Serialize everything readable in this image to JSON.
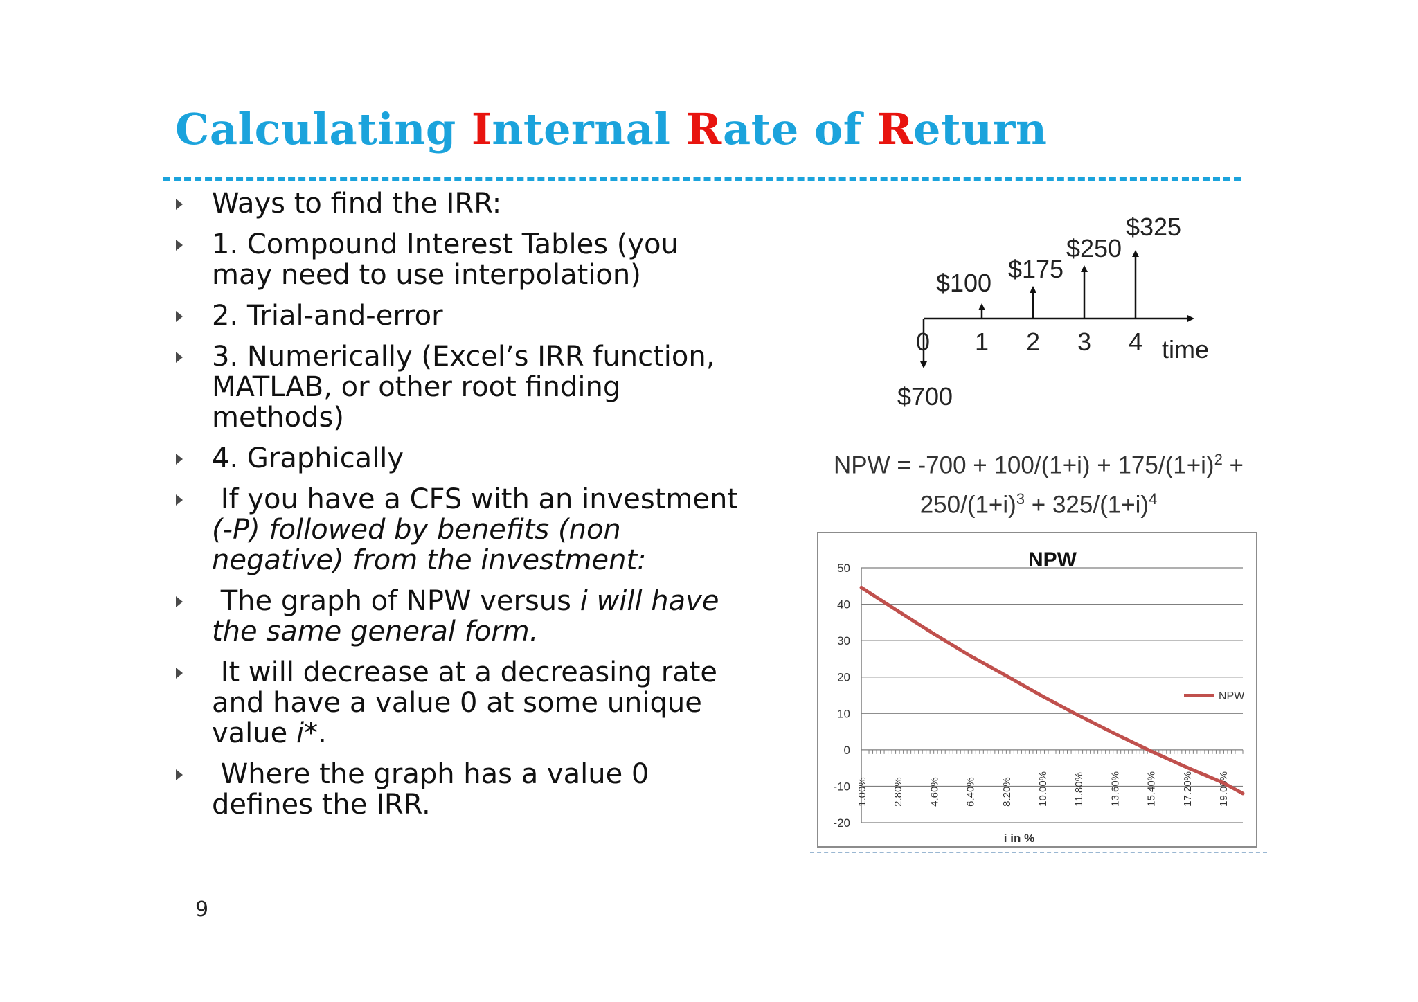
{
  "title": {
    "p1": "Calculating ",
    "p2": "I",
    "p3": "nternal ",
    "p4": "R",
    "p5": "ate of ",
    "p6": "R",
    "p7": "eturn"
  },
  "bullets": {
    "b1": "Ways to find the IRR:",
    "b2": "1. Compound Interest Tables (you may need to use interpolation)",
    "b3": "2. Trial-and-error",
    "b4": "3. Numerically (Excel’s IRR function, MATLAB, or other root finding methods)",
    "b5": "4. Graphically",
    "b6a": "If you have a CFS with an investment",
    "b6b": "(-P) followed by benefits (non negative) from the investment:",
    "b7a": "The graph of NPW versus ",
    "b7b": "i will have the same general form.",
    "b8a": "It will decrease at a decreasing rate and have a value 0 at some unique value ",
    "b8b": "i*",
    "b8c": ".",
    "b9": "Where the graph has a value 0 defines the IRR."
  },
  "page_number": "9",
  "cash_flow": {
    "labels": [
      "$700",
      "$100",
      "$175",
      "$250",
      "$325"
    ],
    "periods": [
      "0",
      "1",
      "2",
      "3",
      "4"
    ],
    "axis_label": "time"
  },
  "formula": {
    "l1a": "NPW = -700 + 100/(1+i) + 175/(1+i)",
    "l1sup": "2",
    "l1b": " +",
    "l2a": "250/(1+i)",
    "l2sup1": "3",
    "l2b": " + 325/(1+i)",
    "l2sup2": "4"
  },
  "colors": {
    "accent": "#1ba3dc",
    "highlight": "#e8140f",
    "series": "#c0504d"
  },
  "chart_data": {
    "type": "line",
    "title": "NPW",
    "xlabel": "i in %",
    "ylabel": "",
    "ylim": [
      -20,
      50
    ],
    "yticks": [
      50,
      40,
      30,
      20,
      10,
      0,
      -10,
      -20
    ],
    "grid": true,
    "legend": "right",
    "x_tick_labels": [
      "1.00%",
      "2.80%",
      "4.60%",
      "6.40%",
      "8.20%",
      "10.00%",
      "11.80%",
      "13.60%",
      "15.40%",
      "17.20%",
      "19.00%"
    ],
    "series": [
      {
        "name": "NPW",
        "x": [
          1.0,
          2.8,
          4.6,
          6.4,
          8.2,
          10.0,
          11.8,
          13.6,
          15.4,
          17.2,
          19.0,
          20.0
        ],
        "values": [
          44.6,
          38.2,
          31.9,
          25.9,
          20.4,
          14.8,
          9.5,
          4.5,
          -0.3,
          -4.8,
          -9.0,
          -12.0
        ]
      }
    ]
  }
}
